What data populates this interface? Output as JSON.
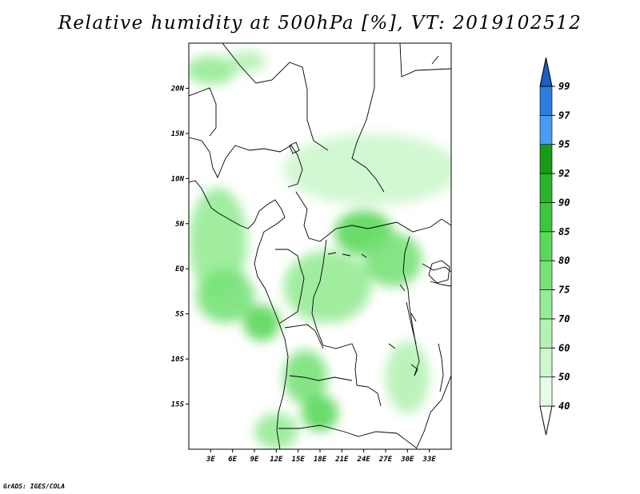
{
  "title": "Relative humidity at 500hPa [%], VT: 2019102512",
  "credit": "GrADS: IGES/COLA",
  "map": {
    "lon_range": [
      0,
      36
    ],
    "lat_range": [
      -20,
      25
    ],
    "lon_ticks": [
      {
        "value": 3,
        "label": "3E"
      },
      {
        "value": 6,
        "label": "6E"
      },
      {
        "value": 9,
        "label": "9E"
      },
      {
        "value": 12,
        "label": "12E"
      },
      {
        "value": 15,
        "label": "15E"
      },
      {
        "value": 18,
        "label": "18E"
      },
      {
        "value": 21,
        "label": "21E"
      },
      {
        "value": 24,
        "label": "24E"
      },
      {
        "value": 27,
        "label": "27E"
      },
      {
        "value": 30,
        "label": "30E"
      },
      {
        "value": 33,
        "label": "33E"
      }
    ],
    "lat_ticks": [
      {
        "value": 20,
        "label": "20N"
      },
      {
        "value": 15,
        "label": "15N"
      },
      {
        "value": 10,
        "label": "10N"
      },
      {
        "value": 5,
        "label": "5N"
      },
      {
        "value": 0,
        "label": "EQ"
      },
      {
        "value": -5,
        "label": "5S"
      },
      {
        "value": -10,
        "label": "10S"
      },
      {
        "value": -15,
        "label": "15S"
      }
    ]
  },
  "colorbar": {
    "levels": [
      40,
      50,
      60,
      70,
      75,
      80,
      85,
      90,
      92,
      95,
      97,
      99
    ],
    "labels": [
      "40",
      "50",
      "60",
      "70",
      "75",
      "80",
      "85",
      "90",
      "92",
      "95",
      "97",
      "99"
    ],
    "colors": [
      "#ffffff",
      "#e6fce6",
      "#cdf7cd",
      "#b4f2b4",
      "#96eb96",
      "#78e278",
      "#5ad85a",
      "#3cc83c",
      "#28b428",
      "#179b17",
      "#4a9cf0",
      "#2b7de0",
      "#1a5fc8"
    ]
  },
  "chart_data": {
    "type": "heatmap",
    "title": "Relative humidity at 500hPa [%], VT: 2019102512",
    "xlabel": "",
    "ylabel": "",
    "xlim": [
      0,
      36
    ],
    "ylim": [
      -20,
      25
    ],
    "x_ticks": [
      "3E",
      "6E",
      "9E",
      "12E",
      "15E",
      "18E",
      "21E",
      "24E",
      "27E",
      "30E",
      "33E"
    ],
    "y_ticks": [
      "20N",
      "15N",
      "10N",
      "5N",
      "EQ",
      "5S",
      "10S",
      "15S"
    ],
    "levels": [
      40,
      50,
      60,
      70,
      75,
      80,
      85,
      90,
      92,
      95,
      97,
      99
    ],
    "regions": [
      {
        "lon": 3,
        "lat": 22,
        "rx": 3.5,
        "ry": 1.6,
        "value": 70
      },
      {
        "lon": 8,
        "lat": 23,
        "rx": 2.5,
        "ry": 1.2,
        "value": 65
      },
      {
        "lon": 25,
        "lat": 11,
        "rx": 12,
        "ry": 4,
        "value": 55
      },
      {
        "lon": 4,
        "lat": 3,
        "rx": 4,
        "ry": 6,
        "value": 70
      },
      {
        "lon": 5,
        "lat": -3,
        "rx": 4,
        "ry": 3,
        "value": 78
      },
      {
        "lon": 10,
        "lat": -6,
        "rx": 2.5,
        "ry": 2,
        "value": 80
      },
      {
        "lon": 24,
        "lat": 4,
        "rx": 4,
        "ry": 2.5,
        "value": 80
      },
      {
        "lon": 28,
        "lat": 1,
        "rx": 4,
        "ry": 3,
        "value": 75
      },
      {
        "lon": 16,
        "lat": -12,
        "rx": 3,
        "ry": 3,
        "value": 78
      },
      {
        "lon": 18,
        "lat": -16,
        "rx": 2.5,
        "ry": 2,
        "value": 82
      },
      {
        "lon": 19,
        "lat": -2,
        "rx": 6,
        "ry": 4,
        "value": 70
      },
      {
        "lon": 30,
        "lat": -12,
        "rx": 3,
        "ry": 4,
        "value": 60
      },
      {
        "lon": 12,
        "lat": -18,
        "rx": 3,
        "ry": 2,
        "value": 70
      }
    ]
  }
}
